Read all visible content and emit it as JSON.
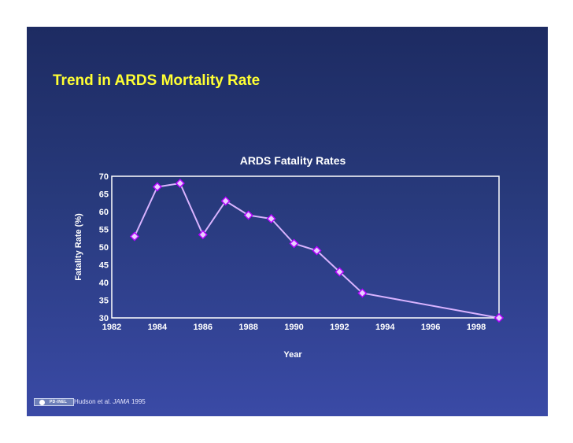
{
  "slide": {
    "title": "Trend in ARDS Mortality Rate",
    "citation": {
      "authors": "Hudson et al.",
      "journal": "JAMA",
      "year": "1995"
    },
    "logo_text": "PD-INEL"
  },
  "colors": {
    "title": "#ffff33",
    "line": "#d9b3ff",
    "marker_stroke": "#b300ff",
    "marker_fill": "#e9cfff",
    "plot_border": "#ffffff"
  },
  "chart_data": {
    "type": "line",
    "title": "ARDS Fatality Rates",
    "xlabel": "Year",
    "ylabel": "Fatality Rate (%)",
    "xlim": [
      1982,
      1999
    ],
    "ylim": [
      30,
      70
    ],
    "xticks": [
      1982,
      1984,
      1986,
      1988,
      1990,
      1992,
      1994,
      1996,
      1998
    ],
    "xtick_labels": [
      "1982",
      "1984",
      "1986",
      "1988",
      "1990",
      "1992",
      "1994",
      "1996",
      "1998"
    ],
    "yticks": [
      30,
      35,
      40,
      45,
      50,
      55,
      60,
      65,
      70
    ],
    "ytick_labels": [
      "30",
      "35",
      "40",
      "45",
      "50",
      "55",
      "60",
      "65",
      "70"
    ],
    "grid": false,
    "legend": "none",
    "series": [
      {
        "name": "ARDS fatality rate",
        "x": [
          1983,
          1984,
          1985,
          1986,
          1987,
          1988,
          1989,
          1990,
          1991,
          1992,
          1993,
          1999
        ],
        "values": [
          53,
          67,
          68,
          53.5,
          63,
          59,
          58,
          51,
          49,
          43,
          37,
          30
        ]
      }
    ]
  }
}
